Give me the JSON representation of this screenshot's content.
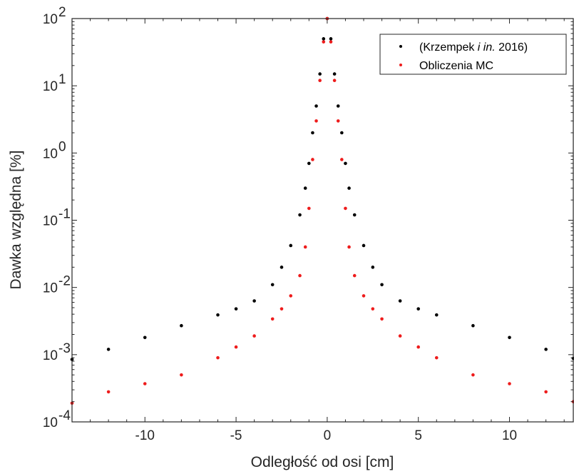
{
  "chart_data": {
    "type": "scatter",
    "title": "",
    "xlabel": "Odległość od osi [cm]",
    "ylabel": "Dawka względna [%]",
    "xlim": [
      -14,
      13.5
    ],
    "ylim": [
      0.0001,
      100
    ],
    "yscale": "log",
    "grid": false,
    "legend_position": "top-right",
    "x_ticks": [
      {
        "value": -10,
        "label": "-10"
      },
      {
        "value": -5,
        "label": "-5"
      },
      {
        "value": 0,
        "label": "0"
      },
      {
        "value": 5,
        "label": "5"
      },
      {
        "value": 10,
        "label": "10"
      }
    ],
    "y_ticks": [
      {
        "value": 0.0001,
        "base": "10",
        "exp": "-4"
      },
      {
        "value": 0.001,
        "base": "10",
        "exp": "-3"
      },
      {
        "value": 0.01,
        "base": "10",
        "exp": "-2"
      },
      {
        "value": 0.1,
        "base": "10",
        "exp": "-1"
      },
      {
        "value": 1,
        "base": "10",
        "exp": "0"
      },
      {
        "value": 10,
        "base": "10",
        "exp": "1"
      },
      {
        "value": 100,
        "base": "10",
        "exp": "2"
      }
    ],
    "series": [
      {
        "name_parts": [
          "(Krzempek ",
          "i in.",
          " 2016)"
        ],
        "color": "#000000",
        "points": [
          [
            -14,
            0.00085
          ],
          [
            -12,
            0.0012
          ],
          [
            -10,
            0.0018
          ],
          [
            -8,
            0.0027
          ],
          [
            -6,
            0.0039
          ],
          [
            -5,
            0.0048
          ],
          [
            -4,
            0.0063
          ],
          [
            -3,
            0.011
          ],
          [
            -2.5,
            0.02
          ],
          [
            -2,
            0.042
          ],
          [
            -1.5,
            0.12
          ],
          [
            -1.2,
            0.3
          ],
          [
            -1,
            0.7
          ],
          [
            -0.8,
            2
          ],
          [
            -0.6,
            5
          ],
          [
            -0.4,
            15
          ],
          [
            -0.2,
            50
          ],
          [
            0,
            100
          ],
          [
            0.2,
            50
          ],
          [
            0.4,
            15
          ],
          [
            0.6,
            5
          ],
          [
            0.8,
            2
          ],
          [
            1,
            0.7
          ],
          [
            1.2,
            0.3
          ],
          [
            1.5,
            0.12
          ],
          [
            2,
            0.042
          ],
          [
            2.5,
            0.02
          ],
          [
            3,
            0.011
          ],
          [
            4,
            0.0063
          ],
          [
            5,
            0.0048
          ],
          [
            6,
            0.0039
          ],
          [
            8,
            0.0027
          ],
          [
            10,
            0.0018
          ],
          [
            12,
            0.0012
          ],
          [
            13.5,
            0.00088
          ]
        ]
      },
      {
        "name": "Obliczenia MC",
        "color": "#ee1c1c",
        "points": [
          [
            -14,
            0.00019
          ],
          [
            -12,
            0.00028
          ],
          [
            -10,
            0.00037
          ],
          [
            -8,
            0.0005
          ],
          [
            -6,
            0.0009
          ],
          [
            -5,
            0.0013
          ],
          [
            -4,
            0.0019
          ],
          [
            -3,
            0.0034
          ],
          [
            -2.5,
            0.0048
          ],
          [
            -2,
            0.0075
          ],
          [
            -1.5,
            0.015
          ],
          [
            -1.2,
            0.04
          ],
          [
            -1,
            0.15
          ],
          [
            -0.8,
            0.8
          ],
          [
            -0.6,
            3
          ],
          [
            -0.4,
            12
          ],
          [
            -0.2,
            45
          ],
          [
            0,
            100
          ],
          [
            0.2,
            45
          ],
          [
            0.4,
            12
          ],
          [
            0.6,
            3
          ],
          [
            0.8,
            0.8
          ],
          [
            1,
            0.15
          ],
          [
            1.2,
            0.04
          ],
          [
            1.5,
            0.015
          ],
          [
            2,
            0.0075
          ],
          [
            2.5,
            0.0048
          ],
          [
            3,
            0.0034
          ],
          [
            4,
            0.0019
          ],
          [
            5,
            0.0013
          ],
          [
            6,
            0.0009
          ],
          [
            8,
            0.0005
          ],
          [
            10,
            0.00037
          ],
          [
            12,
            0.00028
          ],
          [
            13.5,
            0.0002
          ]
        ]
      }
    ]
  }
}
